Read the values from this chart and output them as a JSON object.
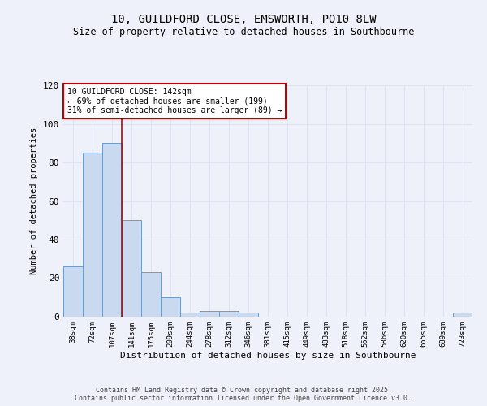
{
  "title_line1": "10, GUILDFORD CLOSE, EMSWORTH, PO10 8LW",
  "title_line2": "Size of property relative to detached houses in Southbourne",
  "xlabel": "Distribution of detached houses by size in Southbourne",
  "ylabel": "Number of detached properties",
  "bin_labels": [
    "38sqm",
    "72sqm",
    "107sqm",
    "141sqm",
    "175sqm",
    "209sqm",
    "244sqm",
    "278sqm",
    "312sqm",
    "346sqm",
    "381sqm",
    "415sqm",
    "449sqm",
    "483sqm",
    "518sqm",
    "552sqm",
    "586sqm",
    "620sqm",
    "655sqm",
    "689sqm",
    "723sqm"
  ],
  "bar_values": [
    26,
    85,
    90,
    50,
    23,
    10,
    2,
    3,
    3,
    2,
    0,
    0,
    0,
    0,
    0,
    0,
    0,
    0,
    0,
    0,
    2
  ],
  "bar_color": "#c9d9f0",
  "bar_edge_color": "#7099c8",
  "ylim": [
    0,
    120
  ],
  "yticks": [
    0,
    20,
    40,
    60,
    80,
    100,
    120
  ],
  "annotation_text": "10 GUILDFORD CLOSE: 142sqm\n← 69% of detached houses are smaller (199)\n31% of semi-detached houses are larger (89) →",
  "vline_x": 3.0,
  "vline_color": "#c00000",
  "annotation_box_color": "#c00000",
  "background_color": "#eef1f9",
  "grid_color": "#dde3f0",
  "footer_line1": "Contains HM Land Registry data © Crown copyright and database right 2025.",
  "footer_line2": "Contains public sector information licensed under the Open Government Licence v3.0."
}
